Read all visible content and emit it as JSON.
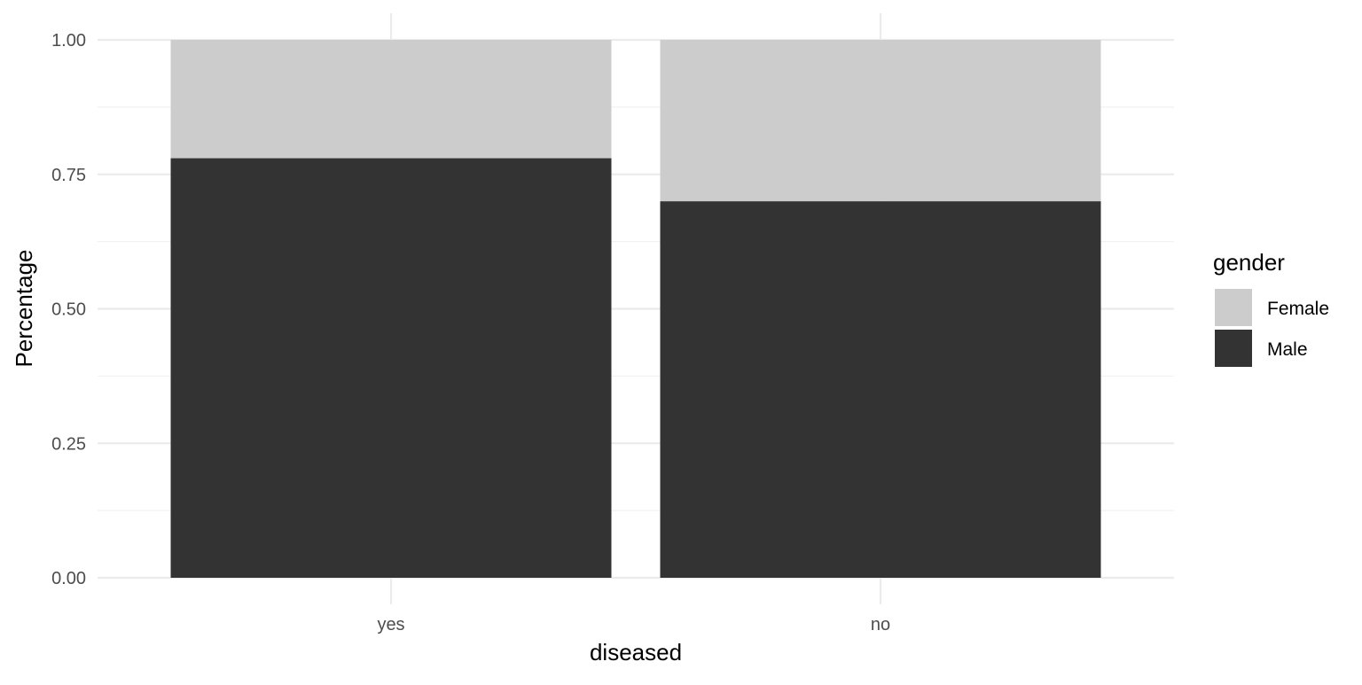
{
  "chart_data": {
    "type": "bar",
    "stacked": true,
    "position": "fill",
    "categories": [
      "yes",
      "no"
    ],
    "series": [
      {
        "name": "Male",
        "values": [
          0.78,
          0.7
        ],
        "color": "#333333"
      },
      {
        "name": "Female",
        "values": [
          0.22,
          0.3
        ],
        "color": "#cccccc"
      }
    ],
    "xlabel": "diseased",
    "ylabel": "Percentage",
    "ylim": [
      0,
      1
    ],
    "yticks": [
      0,
      0.25,
      0.5,
      0.75,
      1
    ],
    "ytick_labels": [
      "0.00",
      "0.25",
      "0.50",
      "0.75",
      "1.00"
    ],
    "grid": true,
    "legend": {
      "title": "gender",
      "position": "right",
      "entries": [
        {
          "label": "Female",
          "color": "#cccccc"
        },
        {
          "label": "Male",
          "color": "#333333"
        }
      ]
    }
  }
}
